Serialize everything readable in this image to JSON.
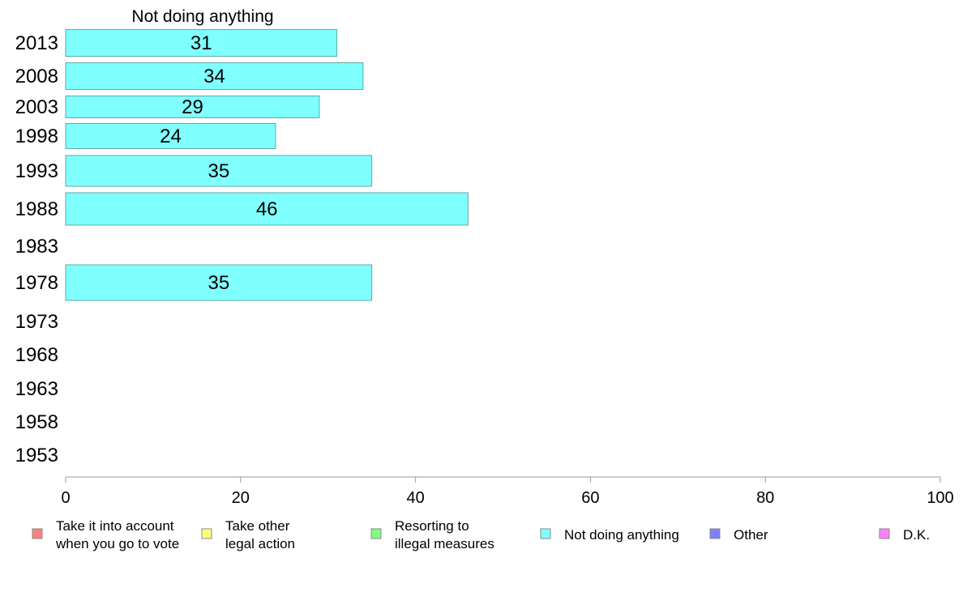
{
  "chart_data": {
    "type": "bar",
    "orientation": "horizontal",
    "title": "Not doing anything",
    "xlabel": "",
    "ylabel": "",
    "categories": [
      "2013",
      "2008",
      "2003",
      "1998",
      "1993",
      "1988",
      "1983",
      "1978",
      "1973",
      "1968",
      "1963",
      "1958",
      "1953"
    ],
    "series": [
      {
        "name": "Not doing anything",
        "color": "#80ffff",
        "values": [
          31,
          34,
          29,
          24,
          35,
          46,
          null,
          35,
          null,
          null,
          null,
          null,
          null
        ]
      }
    ],
    "xlim": [
      0,
      100
    ],
    "xticks": [
      0,
      20,
      40,
      60,
      80,
      100
    ],
    "grid": false,
    "legend": {
      "placement": "bottom",
      "entries": [
        {
          "lines": [
            "Take it into account",
            "when you go to vote"
          ],
          "color": "#ff8080"
        },
        {
          "lines": [
            "Take other",
            "legal action"
          ],
          "color": "#ffff80"
        },
        {
          "lines": [
            "Resorting to",
            "illegal measures"
          ],
          "color": "#80ff80"
        },
        {
          "lines": [
            "Not doing anything"
          ],
          "color": "#80ffff"
        },
        {
          "lines": [
            "Other"
          ],
          "color": "#8080ff"
        },
        {
          "lines": [
            "D.K."
          ],
          "color": "#ff80ff"
        }
      ]
    }
  }
}
